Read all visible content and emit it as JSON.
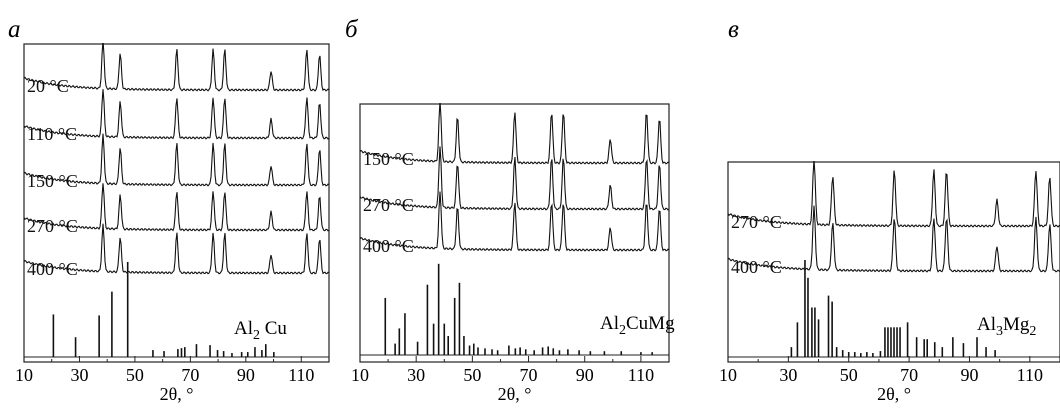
{
  "chart_data": [
    {
      "type": "line",
      "panel_letter": "а",
      "xlabel": "2θ, °",
      "xlim": [
        10,
        120
      ],
      "xticks": [
        10,
        30,
        50,
        70,
        90,
        110
      ],
      "grid": false,
      "series": [
        {
          "name": "20 °C"
        },
        {
          "name": "110 °C"
        },
        {
          "name": "150 °C"
        },
        {
          "name": "270 °C"
        },
        {
          "name": "400 °C"
        }
      ],
      "peaks": [
        {
          "x": 38.5,
          "h": 1.0
        },
        {
          "x": 44.7,
          "h": 0.75
        },
        {
          "x": 65.1,
          "h": 0.85
        },
        {
          "x": 78.2,
          "h": 0.85
        },
        {
          "x": 82.4,
          "h": 0.85
        },
        {
          "x": 99.1,
          "h": 0.4
        },
        {
          "x": 112.0,
          "h": 0.85
        },
        {
          "x": 116.6,
          "h": 0.75
        }
      ],
      "reference": {
        "label": "Al",
        "label_sub": "2",
        "label_rest": " Cu",
        "lines": [
          {
            "x": 20.6,
            "h": 0.43
          },
          {
            "x": 28.6,
            "h": 0.2
          },
          {
            "x": 37.1,
            "h": 0.42
          },
          {
            "x": 41.7,
            "h": 0.66
          },
          {
            "x": 47.4,
            "h": 0.96
          },
          {
            "x": 56.5,
            "h": 0.07
          },
          {
            "x": 60.5,
            "h": 0.06
          },
          {
            "x": 65.5,
            "h": 0.08
          },
          {
            "x": 66.8,
            "h": 0.09
          },
          {
            "x": 68.0,
            "h": 0.1
          },
          {
            "x": 72.2,
            "h": 0.13
          },
          {
            "x": 77.1,
            "h": 0.12
          },
          {
            "x": 79.8,
            "h": 0.07
          },
          {
            "x": 82.0,
            "h": 0.06
          },
          {
            "x": 85.0,
            "h": 0.04
          },
          {
            "x": 88.5,
            "h": 0.05
          },
          {
            "x": 90.7,
            "h": 0.05
          },
          {
            "x": 93.3,
            "h": 0.1
          },
          {
            "x": 95.8,
            "h": 0.07
          },
          {
            "x": 97.2,
            "h": 0.13
          },
          {
            "x": 100.1,
            "h": 0.05
          }
        ]
      }
    },
    {
      "type": "line",
      "panel_letter": "б",
      "xlabel": "2θ, °",
      "xlim": [
        10,
        120
      ],
      "xticks": [
        10,
        30,
        50,
        70,
        90,
        110
      ],
      "grid": false,
      "series": [
        {
          "name": "150 °C"
        },
        {
          "name": "270 °C"
        },
        {
          "name": "400 °C"
        }
      ],
      "peaks": [
        {
          "x": 38.5,
          "h": 1.0
        },
        {
          "x": 44.7,
          "h": 0.75
        },
        {
          "x": 65.1,
          "h": 0.85
        },
        {
          "x": 78.2,
          "h": 0.85
        },
        {
          "x": 82.4,
          "h": 0.85
        },
        {
          "x": 99.1,
          "h": 0.4
        },
        {
          "x": 112.0,
          "h": 0.85
        },
        {
          "x": 116.6,
          "h": 0.75
        }
      ],
      "reference": {
        "label": "Al",
        "label_sub": "2",
        "label_rest": "CuMg",
        "lines": [
          {
            "x": 19.0,
            "h": 0.6
          },
          {
            "x": 22.5,
            "h": 0.12
          },
          {
            "x": 24.0,
            "h": 0.28
          },
          {
            "x": 26.0,
            "h": 0.44
          },
          {
            "x": 30.5,
            "h": 0.14
          },
          {
            "x": 34.0,
            "h": 0.74
          },
          {
            "x": 36.2,
            "h": 0.33
          },
          {
            "x": 38.0,
            "h": 0.96
          },
          {
            "x": 40.0,
            "h": 0.33
          },
          {
            "x": 41.4,
            "h": 0.2
          },
          {
            "x": 43.7,
            "h": 0.6
          },
          {
            "x": 45.4,
            "h": 0.76
          },
          {
            "x": 47.0,
            "h": 0.2
          },
          {
            "x": 49.0,
            "h": 0.1
          },
          {
            "x": 50.5,
            "h": 0.12
          },
          {
            "x": 52.0,
            "h": 0.08
          },
          {
            "x": 54.5,
            "h": 0.07
          },
          {
            "x": 57.0,
            "h": 0.06
          },
          {
            "x": 59.0,
            "h": 0.05
          },
          {
            "x": 63.0,
            "h": 0.1
          },
          {
            "x": 65.3,
            "h": 0.07
          },
          {
            "x": 67.0,
            "h": 0.08
          },
          {
            "x": 69.0,
            "h": 0.06
          },
          {
            "x": 72.0,
            "h": 0.05
          },
          {
            "x": 75.0,
            "h": 0.08
          },
          {
            "x": 77.0,
            "h": 0.09
          },
          {
            "x": 78.8,
            "h": 0.07
          },
          {
            "x": 81.0,
            "h": 0.05
          },
          {
            "x": 84.0,
            "h": 0.06
          },
          {
            "x": 88.0,
            "h": 0.05
          },
          {
            "x": 92.0,
            "h": 0.04
          },
          {
            "x": 97.0,
            "h": 0.04
          },
          {
            "x": 103.0,
            "h": 0.04
          },
          {
            "x": 110.0,
            "h": 0.03
          },
          {
            "x": 114.0,
            "h": 0.03
          }
        ]
      }
    },
    {
      "type": "line",
      "panel_letter": "в",
      "xlabel": "2θ, °",
      "xlim": [
        10,
        120
      ],
      "xticks": [
        10,
        30,
        50,
        70,
        90,
        110
      ],
      "grid": false,
      "series": [
        {
          "name": "270 °C"
        },
        {
          "name": "400 °C"
        }
      ],
      "peaks": [
        {
          "x": 38.5,
          "h": 1.0
        },
        {
          "x": 44.7,
          "h": 0.75
        },
        {
          "x": 65.1,
          "h": 0.85
        },
        {
          "x": 78.2,
          "h": 0.85
        },
        {
          "x": 82.4,
          "h": 0.85
        },
        {
          "x": 99.1,
          "h": 0.4
        },
        {
          "x": 112.0,
          "h": 0.85
        },
        {
          "x": 116.6,
          "h": 0.75
        }
      ],
      "reference": {
        "label": "Al",
        "label_sub": "3",
        "label_rest": "Mg",
        "label_sub2": "2",
        "lines": [
          {
            "x": 31.0,
            "h": 0.1
          },
          {
            "x": 33.0,
            "h": 0.35
          },
          {
            "x": 35.5,
            "h": 0.98
          },
          {
            "x": 36.5,
            "h": 0.8
          },
          {
            "x": 37.8,
            "h": 0.5
          },
          {
            "x": 38.8,
            "h": 0.5
          },
          {
            "x": 40.0,
            "h": 0.38
          },
          {
            "x": 43.3,
            "h": 0.62
          },
          {
            "x": 44.5,
            "h": 0.56
          },
          {
            "x": 46.0,
            "h": 0.1
          },
          {
            "x": 48.0,
            "h": 0.07
          },
          {
            "x": 50.0,
            "h": 0.05
          },
          {
            "x": 52.0,
            "h": 0.05
          },
          {
            "x": 54.0,
            "h": 0.04
          },
          {
            "x": 56.0,
            "h": 0.05
          },
          {
            "x": 58.0,
            "h": 0.04
          },
          {
            "x": 60.5,
            "h": 0.06
          },
          {
            "x": 62.0,
            "h": 0.3
          },
          {
            "x": 63.0,
            "h": 0.3
          },
          {
            "x": 64.0,
            "h": 0.3
          },
          {
            "x": 65.0,
            "h": 0.3
          },
          {
            "x": 66.0,
            "h": 0.3
          },
          {
            "x": 67.0,
            "h": 0.3
          },
          {
            "x": 69.5,
            "h": 0.35
          },
          {
            "x": 72.5,
            "h": 0.2
          },
          {
            "x": 75.0,
            "h": 0.18
          },
          {
            "x": 76.0,
            "h": 0.18
          },
          {
            "x": 78.5,
            "h": 0.15
          },
          {
            "x": 81.0,
            "h": 0.1
          },
          {
            "x": 84.5,
            "h": 0.2
          },
          {
            "x": 88.0,
            "h": 0.14
          },
          {
            "x": 92.5,
            "h": 0.2
          },
          {
            "x": 95.5,
            "h": 0.1
          },
          {
            "x": 98.5,
            "h": 0.07
          }
        ]
      }
    }
  ]
}
